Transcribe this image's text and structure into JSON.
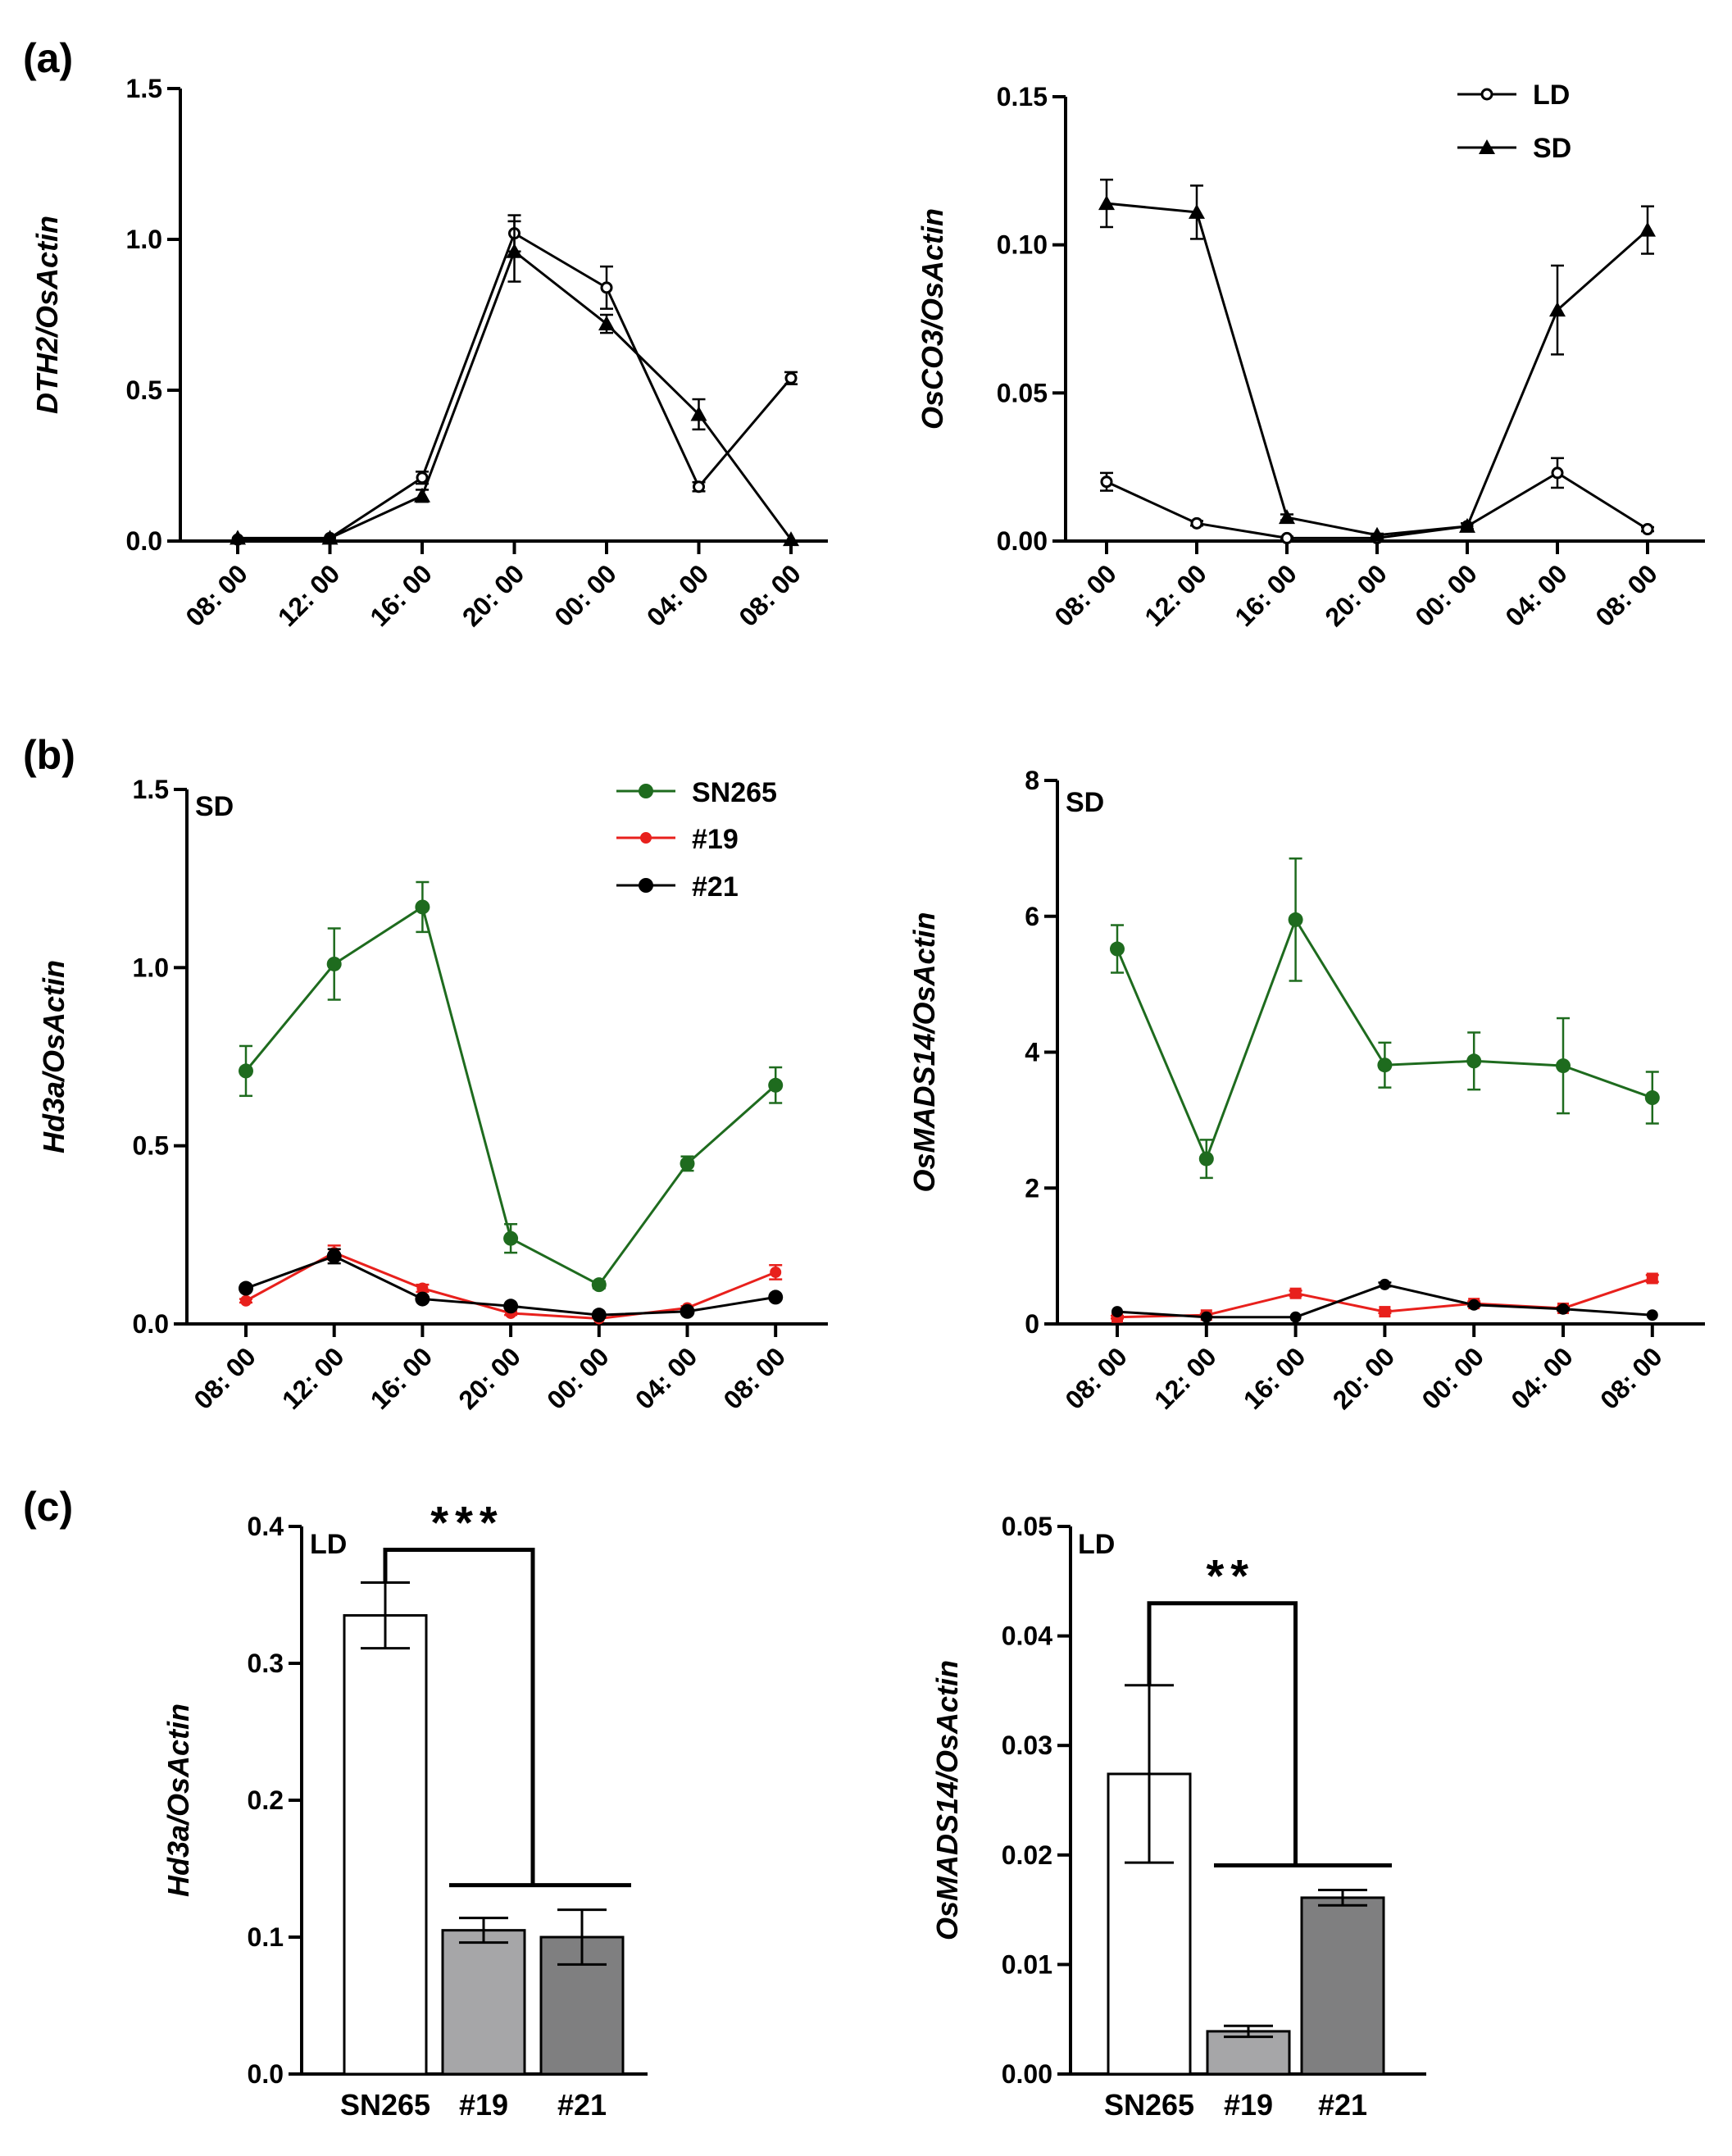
{
  "panel_labels": [
    "(a)",
    "(b)",
    "(c)"
  ],
  "chart_data": [
    {
      "id": "a-left",
      "panel": "(a)",
      "type": "line",
      "ylabel": "DTH2/OsActin",
      "categories": [
        "08: 00",
        "12: 00",
        "16: 00",
        "20: 00",
        "00: 00",
        "04: 00",
        "08: 00"
      ],
      "ylim": [
        0,
        1.5
      ],
      "yticks": [
        0.0,
        0.5,
        1.0,
        1.5
      ],
      "ytick_labels": [
        "0.0",
        "0.5",
        "1.0",
        "1.5"
      ],
      "series": [
        {
          "name": "LD",
          "marker": "open-circle",
          "color": "#000000",
          "values": [
            0.005,
            0.01,
            0.21,
            1.02,
            0.84,
            0.18,
            0.54
          ],
          "errors": [
            0.003,
            0.004,
            0.02,
            0.06,
            0.07,
            0.015,
            0.02
          ]
        },
        {
          "name": "SD",
          "marker": "triangle",
          "color": "#000000",
          "values": [
            0.01,
            0.01,
            0.15,
            0.96,
            0.72,
            0.42,
            0.005
          ],
          "errors": [
            0.004,
            0.004,
            0.02,
            0.1,
            0.03,
            0.05,
            0.003
          ]
        }
      ]
    },
    {
      "id": "a-right",
      "panel": "(a)",
      "type": "line",
      "ylabel": "OsCO3/OsActin",
      "categories": [
        "08: 00",
        "12: 00",
        "16: 00",
        "20: 00",
        "00: 00",
        "04: 00",
        "08: 00"
      ],
      "ylim": [
        0,
        0.15
      ],
      "yticks": [
        0.0,
        0.05,
        0.1,
        0.15
      ],
      "ytick_labels": [
        "0.00",
        "0.05",
        "0.10",
        "0.15"
      ],
      "legend": {
        "position": "top-right",
        "entries": [
          "LD",
          "SD"
        ]
      },
      "series": [
        {
          "name": "LD",
          "marker": "open-circle",
          "color": "#000000",
          "values": [
            0.02,
            0.006,
            0.001,
            0.001,
            0.005,
            0.023,
            0.004
          ],
          "errors": [
            0.003,
            0.0008,
            0.0005,
            0.0005,
            0.001,
            0.005,
            0.0007
          ]
        },
        {
          "name": "SD",
          "marker": "triangle",
          "color": "#000000",
          "values": [
            0.114,
            0.111,
            0.008,
            0.002,
            0.005,
            0.078,
            0.105
          ],
          "errors": [
            0.008,
            0.009,
            0.001,
            0.0005,
            0.001,
            0.015,
            0.008
          ]
        }
      ]
    },
    {
      "id": "b-left",
      "panel": "(b)",
      "type": "line",
      "inset_label": "SD",
      "ylabel": "Hd3a/OsActin",
      "categories": [
        "08: 00",
        "12: 00",
        "16: 00",
        "20: 00",
        "00: 00",
        "04: 00",
        "08: 00"
      ],
      "ylim": [
        0,
        1.5
      ],
      "yticks": [
        0.0,
        0.5,
        1.0,
        1.5
      ],
      "ytick_labels": [
        "0.0",
        "0.5",
        "1.0",
        "1.5"
      ],
      "legend": {
        "position": "top-right",
        "entries": [
          "SN265",
          "#19",
          "#21"
        ]
      },
      "series": [
        {
          "name": "SN265",
          "marker": "filled-circle",
          "color": "#1e6b1e",
          "values": [
            0.71,
            1.01,
            1.17,
            0.24,
            0.11,
            0.45,
            0.67
          ],
          "errors": [
            0.07,
            0.1,
            0.07,
            0.04,
            0.01,
            0.02,
            0.05
          ]
        },
        {
          "name": "#19",
          "marker": "filled-circle-small",
          "color": "#e8201c",
          "values": [
            0.065,
            0.2,
            0.1,
            0.03,
            0.015,
            0.045,
            0.145
          ],
          "errors": [
            0.005,
            0.02,
            0.01,
            0.005,
            0.003,
            0.005,
            0.02
          ]
        },
        {
          "name": "#21",
          "marker": "filled-circle",
          "color": "#000000",
          "values": [
            0.1,
            0.19,
            0.07,
            0.05,
            0.025,
            0.035,
            0.075
          ],
          "errors": [
            0.005,
            0.02,
            0.005,
            0.005,
            0.003,
            0.004,
            0.005
          ]
        }
      ]
    },
    {
      "id": "b-right",
      "panel": "(b)",
      "type": "line",
      "inset_label": "SD",
      "ylabel": "OsMADS14/OsActin",
      "categories": [
        "08: 00",
        "12: 00",
        "16: 00",
        "20: 00",
        "00: 00",
        "04: 00",
        "08: 00"
      ],
      "ylim": [
        0,
        8
      ],
      "yticks": [
        0,
        2,
        4,
        6,
        8
      ],
      "ytick_labels": [
        "0",
        "2",
        "4",
        "6",
        "8"
      ],
      "series": [
        {
          "name": "SN265",
          "marker": "filled-circle",
          "color": "#1e6b1e",
          "values": [
            5.52,
            2.43,
            5.95,
            3.81,
            3.87,
            3.8,
            3.33
          ],
          "errors": [
            0.35,
            0.28,
            0.9,
            0.33,
            0.42,
            0.7,
            0.38
          ]
        },
        {
          "name": "#19",
          "marker": "square",
          "color": "#e8201c",
          "values": [
            0.1,
            0.13,
            0.45,
            0.18,
            0.3,
            0.23,
            0.67
          ],
          "errors": [
            0.02,
            0.02,
            0.04,
            0.02,
            0.03,
            0.02,
            0.05
          ]
        },
        {
          "name": "#21",
          "marker": "filled-circle-small",
          "color": "#000000",
          "values": [
            0.18,
            0.1,
            0.1,
            0.58,
            0.28,
            0.22,
            0.13
          ],
          "errors": [
            0.01,
            0.01,
            0.01,
            0.03,
            0.02,
            0.02,
            0.01
          ]
        }
      ]
    },
    {
      "id": "c-left",
      "panel": "(c)",
      "type": "bar",
      "inset_label": "LD",
      "ylabel": "Hd3a/OsActin",
      "categories": [
        "SN265",
        "#19",
        "#21"
      ],
      "values": [
        0.335,
        0.105,
        0.1
      ],
      "errors": [
        0.024,
        0.009,
        0.02
      ],
      "colors": [
        "#ffffff",
        "#a6a6a8",
        "#7f7f80"
      ],
      "ylim": [
        0,
        0.4
      ],
      "yticks": [
        0.0,
        0.1,
        0.2,
        0.3,
        0.4
      ],
      "ytick_labels": [
        "0.0",
        "0.1",
        "0.2",
        "0.3",
        "0.4"
      ],
      "significance": "***"
    },
    {
      "id": "c-right",
      "panel": "(c)",
      "type": "bar",
      "inset_label": "LD",
      "ylabel": "OsMADS14/OsActin",
      "categories": [
        "SN265",
        "#19",
        "#21"
      ],
      "values": [
        0.0274,
        0.0039,
        0.0161
      ],
      "errors": [
        0.0081,
        0.0005,
        0.0007
      ],
      "colors": [
        "#ffffff",
        "#a6a6a8",
        "#7f7f80"
      ],
      "ylim": [
        0,
        0.05
      ],
      "yticks": [
        0.0,
        0.01,
        0.02,
        0.03,
        0.04,
        0.05
      ],
      "ytick_labels": [
        "0.00",
        "0.01",
        "0.02",
        "0.03",
        "0.04",
        "0.05"
      ],
      "significance": "**"
    }
  ]
}
